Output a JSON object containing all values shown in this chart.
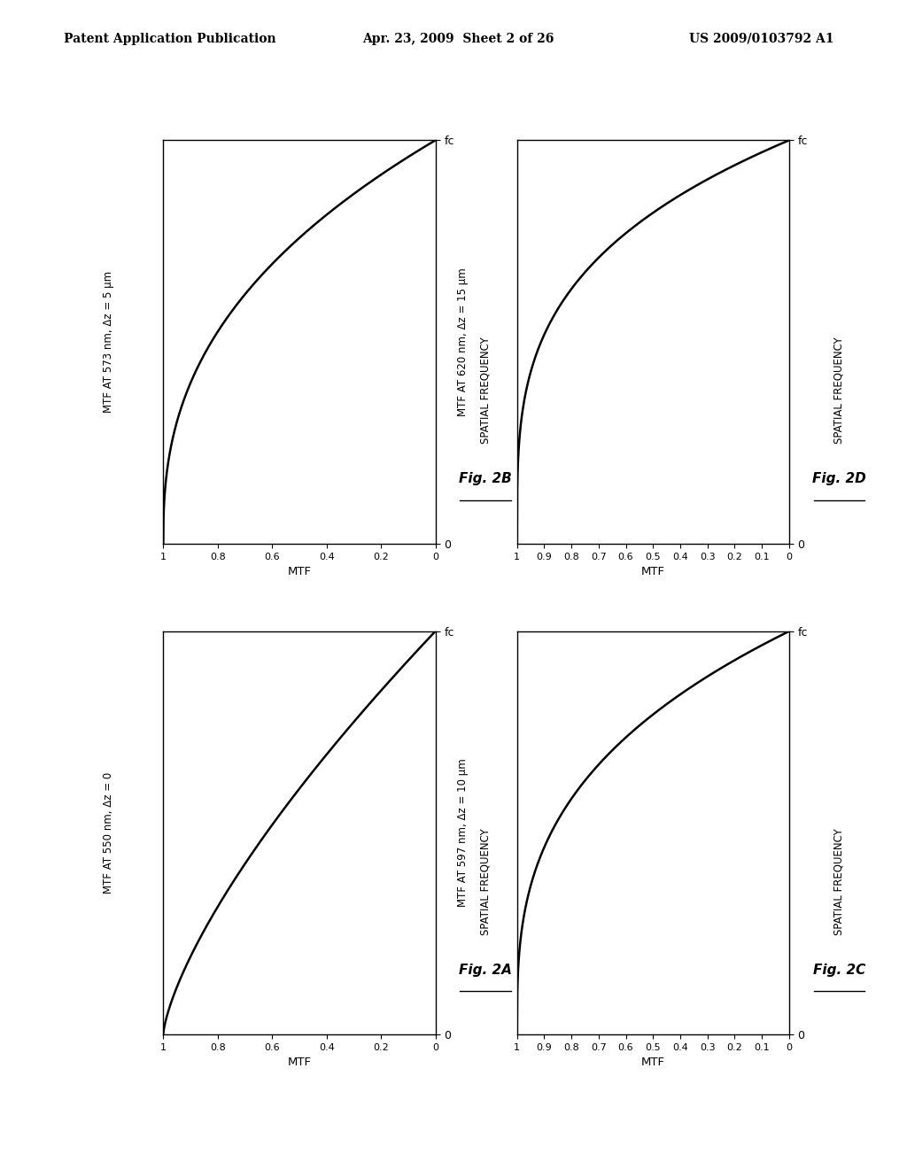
{
  "header_left": "Patent Application Publication",
  "header_mid": "Apr. 23, 2009  Sheet 2 of 26",
  "header_right": "US 2009/0103792 A1",
  "plots": [
    {
      "position": "top_left",
      "left_label": "MTF AT 573 nm, Δz = 5 μm",
      "right_label": "SPATIAL FREQUENCY",
      "fig_label": "Fig. 2B",
      "mtf_ticks": [
        1,
        0.8,
        0.6,
        0.4,
        0.2,
        0
      ],
      "curve_power": 2.5
    },
    {
      "position": "top_right",
      "left_label": "MTF AT 620 nm, Δz = 15 μm",
      "right_label": "SPATIAL FREQUENCY",
      "fig_label": "Fig. 2D",
      "mtf_ticks": [
        1,
        0.9,
        0.8,
        0.7,
        0.6,
        0.5,
        0.4,
        0.3,
        0.2,
        0.1,
        0
      ],
      "curve_power": 3.5
    },
    {
      "position": "bottom_left",
      "left_label": "MTF AT 550 nm, Δz = 0",
      "right_label": "SPATIAL FREQUENCY",
      "fig_label": "Fig. 2A",
      "mtf_ticks": [
        1,
        0.8,
        0.6,
        0.4,
        0.2,
        0
      ],
      "curve_power": 1.4
    },
    {
      "position": "bottom_right",
      "left_label": "MTF AT 597 nm, Δz = 10 μm",
      "right_label": "SPATIAL FREQUENCY",
      "fig_label": "Fig. 2C",
      "mtf_ticks": [
        1,
        0.9,
        0.8,
        0.7,
        0.6,
        0.5,
        0.4,
        0.3,
        0.2,
        0.1,
        0
      ],
      "curve_power": 3.0
    }
  ],
  "background_color": "#ffffff",
  "line_color": "#000000",
  "text_color": "#000000",
  "header_fontsize": 10,
  "axis_label_fontsize": 8.5,
  "tick_fontsize": 8,
  "fig_label_fontsize": 11
}
